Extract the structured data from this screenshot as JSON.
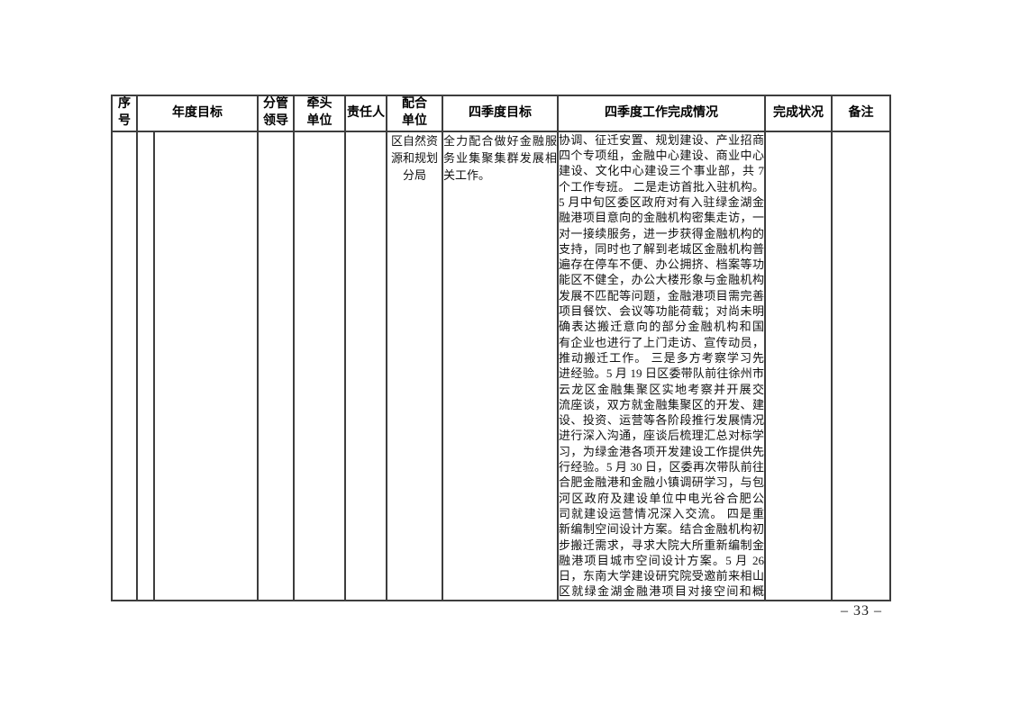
{
  "page": {
    "number": "– 33 –"
  },
  "table": {
    "header": [
      "序号",
      "年度目标",
      "分管领导",
      "牵头单位",
      "责任人",
      "配合单位",
      "四季度目标",
      "四季度工作完成情况",
      "完成状况",
      "备注"
    ],
    "row": {
      "serial": "",
      "sub_serial": "",
      "annual_goal": "",
      "leader": "",
      "lead_unit": "",
      "responsible": "",
      "cooperating_unit": "区自然资源和规划分局",
      "cooperating_unit_lines": [
        "区自然资",
        "源和规划",
        "分局"
      ],
      "q4_goal": "全力配合做好金融服务业集聚集群发展相关工作。",
      "q4_goal_lines": [
        "全力配合做好金融服",
        "务业集聚集群发展相",
        "关工作。"
      ],
      "q4_completion_text": "协调、征迁安置、规划建设、产业招商四个专项组，金融中心建设、商业中心建设、文化中心建设三个事业部，共 7个工作专班。 二是走访首批入驻机构。5 月中旬区委区政府对有入驻绿金湖金融港项目意向的金融机构密集走访，一对一接续服务，进一步获得金融机构的支持，同时也了解到老城区金融机构普遍存在停车不便、办公拥挤、档案等功能区不健全，办公大楼形象与金融机构发展不匹配等问题，金融港项目需完善项目餐饮、会议等功能荷载；对尚未明确表达搬迁意向的部分金融机构和国有企业也进行了上门走访、宣传动员，推动搬迁工作。 三是多方考察学习先进经验。5 月 19 日区委带队前往徐州市云龙区金融集聚区实地考察并开展交流座谈，双方就金融集聚区的开发、建设、投资、运营等各阶段推行发展情况进行深入沟通，座谈后梳理汇总对标学习，为绿金港各项开发建设工作提供先行经验。5 月 30 日，区委再次带队前往合肥金融港和金融小镇调研学习，与包河区政府及建设单位中电光谷合肥公司就建设运营情况深入交流。 四是重新编制空间设计方案。结合金融机构初步搬迁需求，寻求大院大所重新编制金融港项目城市空间设计方案。5 月 26 日，东南大学建设研究院受邀前来相山区就绿金湖金融港项目对接空间和概",
      "q4_completion_lines": [
        "协调、征迁安置、规划建设、产业招商",
        "四个专项组，金融中心建设、商业中心",
        "建设、文化中心建设三个事业部，共 7",
        "个工作专班。 二是走访首批入驻机构。",
        "5 月中旬区委区政府对有入驻绿金湖金",
        "融港项目意向的金融机构密集走访，一",
        "对一接续服务，进一步获得金融机构的",
        "支持，同时也了解到老城区金融机构普",
        "遍存在停车不便、办公拥挤、档案等功",
        "能区不健全，办公大楼形象与金融机构",
        "发展不匹配等问题，金融港项目需完善",
        "项目餐饮、会议等功能荷载；对尚未明",
        "确表达搬迁意向的部分金融机构和国",
        "有企业也进行了上门走访、宣传动员，",
        "推动搬迁工作。 三是多方考察学习先",
        "进经验。5 月 19 日区委带队前往徐州市",
        "云龙区金融集聚区实地考察并开展交",
        "流座谈，双方就金融集聚区的开发、建",
        "设、投资、运营等各阶段推行发展情况",
        "进行深入沟通，座谈后梳理汇总对标学",
        "习，为绿金港各项开发建设工作提供先",
        "行经验。5 月 30 日，区委再次带队前往",
        "合肥金融港和金融小镇调研学习，与包",
        "河区政府及建设单位中电光谷合肥公",
        "司就建设运营情况深入交流。 四是重",
        "新编制空间设计方案。结合金融机构初",
        "步搬迁需求，寻求大院大所重新编制金",
        "融港项目城市空间设计方案。5 月 26",
        "日，东南大学建设研究院受邀前来相山",
        "区就绿金湖金融港项目对接空间和概"
      ],
      "completion_status": "",
      "remarks": ""
    }
  }
}
